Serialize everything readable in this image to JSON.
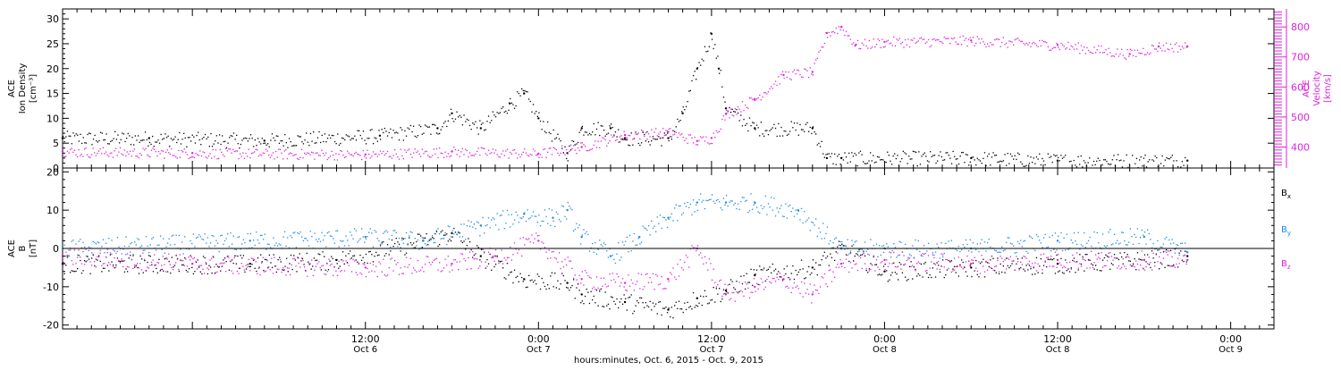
{
  "colors": {
    "black": "#000000",
    "magenta": "#dd22dd",
    "blue": "#1e88e5",
    "frame": "#000000"
  },
  "time_axis": {
    "range": [
      "2015-10-05T15:00",
      "2015-10-09T03:00"
    ],
    "ticks": [
      {
        "t": "2015-10-06T12:00",
        "time": "12:00",
        "day": "Oct 6"
      },
      {
        "t": "2015-10-07T00:00",
        "time": "0:00",
        "day": "Oct 7"
      },
      {
        "t": "2015-10-07T12:00",
        "time": "12:00",
        "day": "Oct 7"
      },
      {
        "t": "2015-10-08T00:00",
        "time": "0:00",
        "day": "Oct 8"
      },
      {
        "t": "2015-10-08T12:00",
        "time": "12:00",
        "day": "Oct 8"
      },
      {
        "t": "2015-10-09T00:00",
        "time": "0:00",
        "day": "Oct 9"
      }
    ],
    "xlabel": "hours:minutes, Oct.  6, 2015 - Oct.  9, 2015"
  },
  "chart_data": [
    {
      "type": "scatter",
      "panel": "top",
      "ylabel_left": [
        "ACE",
        "Ion Density",
        "[cm⁻³]"
      ],
      "ylabel_right": [
        "ACE",
        "Velocity",
        "[km/s]"
      ],
      "left_axis": {
        "ylim": [
          0,
          32
        ],
        "ticks": [
          0,
          5,
          10,
          15,
          20,
          25,
          30
        ]
      },
      "right_axis": {
        "ylim": [
          330,
          860
        ],
        "ticks": [
          400,
          500,
          600,
          700,
          800
        ]
      },
      "series": [
        {
          "axis": "left",
          "color": "black",
          "points": [
            [
              "2015-10-05T15:00",
              6
            ],
            [
              "2015-10-05T21:00",
              6
            ],
            [
              "2015-10-06T05:00",
              5.5
            ],
            [
              "2015-10-06T13:00",
              6.5
            ],
            [
              "2015-10-06T17:00",
              8
            ],
            [
              "2015-10-06T18:00",
              11
            ],
            [
              "2015-10-06T20:00",
              8
            ],
            [
              "2015-10-06T22:00",
              13
            ],
            [
              "2015-10-06T23:00",
              15
            ],
            [
              "2015-10-07T00:00",
              10
            ],
            [
              "2015-10-07T02:00",
              3
            ],
            [
              "2015-10-07T03:00",
              8
            ],
            [
              "2015-10-07T05:00",
              8
            ],
            [
              "2015-10-07T06:00",
              6
            ],
            [
              "2015-10-07T09:00",
              6
            ],
            [
              "2015-10-07T10:00",
              11
            ],
            [
              "2015-10-07T11:00",
              20
            ],
            [
              "2015-10-07T12:00",
              27
            ],
            [
              "2015-10-07T12:30",
              20
            ],
            [
              "2015-10-07T13:00",
              12
            ],
            [
              "2015-10-07T15:00",
              8
            ],
            [
              "2015-10-07T19:00",
              8
            ],
            [
              "2015-10-07T20:00",
              2
            ],
            [
              "2015-10-07T21:00",
              2
            ],
            [
              "2015-10-08T06:00",
              2
            ],
            [
              "2015-10-08T12:00",
              1.5
            ],
            [
              "2015-10-08T21:00",
              1.5
            ]
          ]
        },
        {
          "axis": "right",
          "color": "magenta",
          "points": [
            [
              "2015-10-05T15:00",
              385
            ],
            [
              "2015-10-06T00:00",
              380
            ],
            [
              "2015-10-06T12:00",
              375
            ],
            [
              "2015-10-06T18:00",
              385
            ],
            [
              "2015-10-07T00:00",
              378
            ],
            [
              "2015-10-07T03:00",
              400
            ],
            [
              "2015-10-07T06:00",
              440
            ],
            [
              "2015-10-07T09:00",
              450
            ],
            [
              "2015-10-07T11:00",
              420
            ],
            [
              "2015-10-07T12:00",
              430
            ],
            [
              "2015-10-07T13:00",
              510
            ],
            [
              "2015-10-07T15:00",
              560
            ],
            [
              "2015-10-07T17:00",
              640
            ],
            [
              "2015-10-07T19:00",
              650
            ],
            [
              "2015-10-07T20:00",
              780
            ],
            [
              "2015-10-07T21:00",
              800
            ],
            [
              "2015-10-07T22:00",
              740
            ],
            [
              "2015-10-08T00:00",
              750
            ],
            [
              "2015-10-08T06:00",
              755
            ],
            [
              "2015-10-08T12:00",
              740
            ],
            [
              "2015-10-08T17:00",
              710
            ],
            [
              "2015-10-08T19:00",
              735
            ],
            [
              "2015-10-08T21:00",
              735
            ]
          ]
        }
      ]
    },
    {
      "type": "scatter",
      "panel": "bottom",
      "ylabel_left": [
        "ACE",
        "B",
        "[nT]"
      ],
      "left_axis": {
        "ylim": [
          -21,
          21
        ],
        "ticks": [
          -20,
          -10,
          0,
          10,
          20
        ]
      },
      "zero_line": true,
      "legend_placement": "right",
      "series": [
        {
          "name": "B_x",
          "color": "black",
          "points": [
            [
              "2015-10-05T15:00",
              -4
            ],
            [
              "2015-10-06T04:00",
              -4
            ],
            [
              "2015-10-06T10:00",
              -3
            ],
            [
              "2015-10-06T16:00",
              2
            ],
            [
              "2015-10-06T18:00",
              4
            ],
            [
              "2015-10-06T20:00",
              -2
            ],
            [
              "2015-10-06T23:00",
              -8
            ],
            [
              "2015-10-07T02:00",
              -9
            ],
            [
              "2015-10-07T03:00",
              -12
            ],
            [
              "2015-10-07T06:00",
              -14
            ],
            [
              "2015-10-07T09:00",
              -16
            ],
            [
              "2015-10-07T11:00",
              -13
            ],
            [
              "2015-10-07T13:00",
              -11
            ],
            [
              "2015-10-07T15:00",
              -7
            ],
            [
              "2015-10-07T19:00",
              -5
            ],
            [
              "2015-10-07T21:00",
              0
            ],
            [
              "2015-10-08T00:00",
              -6
            ],
            [
              "2015-10-08T06:00",
              -5
            ],
            [
              "2015-10-08T12:00",
              -4
            ],
            [
              "2015-10-08T18:00",
              -3
            ],
            [
              "2015-10-08T21:00",
              -2
            ]
          ]
        },
        {
          "name": "B_y",
          "color": "blue",
          "points": [
            [
              "2015-10-05T15:00",
              0
            ],
            [
              "2015-10-06T04:00",
              2
            ],
            [
              "2015-10-06T12:00",
              3
            ],
            [
              "2015-10-06T16:00",
              2
            ],
            [
              "2015-10-06T20:00",
              6
            ],
            [
              "2015-10-06T23:00",
              9
            ],
            [
              "2015-10-07T01:00",
              8
            ],
            [
              "2015-10-07T02:00",
              10
            ],
            [
              "2015-10-07T03:00",
              3
            ],
            [
              "2015-10-07T05:00",
              -2
            ],
            [
              "2015-10-07T07:00",
              3
            ],
            [
              "2015-10-07T09:00",
              8
            ],
            [
              "2015-10-07T11:00",
              12
            ],
            [
              "2015-10-07T13:00",
              12
            ],
            [
              "2015-10-07T15:00",
              12
            ],
            [
              "2015-10-07T18:00",
              10
            ],
            [
              "2015-10-07T21:00",
              0
            ],
            [
              "2015-10-08T00:00",
              0
            ],
            [
              "2015-10-08T06:00",
              0
            ],
            [
              "2015-10-08T12:00",
              2
            ],
            [
              "2015-10-08T18:00",
              3
            ],
            [
              "2015-10-08T21:00",
              -1
            ]
          ]
        },
        {
          "name": "B_z",
          "color": "magenta",
          "points": [
            [
              "2015-10-05T15:00",
              -2
            ],
            [
              "2015-10-06T00:00",
              -4
            ],
            [
              "2015-10-06T12:00",
              -5
            ],
            [
              "2015-10-06T18:00",
              -4
            ],
            [
              "2015-10-06T21:00",
              -2
            ],
            [
              "2015-10-07T00:00",
              2
            ],
            [
              "2015-10-07T03:00",
              -8
            ],
            [
              "2015-10-07T06:00",
              -9
            ],
            [
              "2015-10-07T09:00",
              -8
            ],
            [
              "2015-10-07T11:00",
              0
            ],
            [
              "2015-10-07T13:00",
              -12
            ],
            [
              "2015-10-07T15:00",
              -10
            ],
            [
              "2015-10-07T17:00",
              -8
            ],
            [
              "2015-10-07T19:00",
              -12
            ],
            [
              "2015-10-07T21:00",
              -4
            ],
            [
              "2015-10-08T00:00",
              -3
            ],
            [
              "2015-10-08T06:00",
              -4
            ],
            [
              "2015-10-08T12:00",
              -3
            ],
            [
              "2015-10-08T18:00",
              -3
            ],
            [
              "2015-10-08T21:00",
              -3
            ]
          ]
        }
      ]
    }
  ]
}
